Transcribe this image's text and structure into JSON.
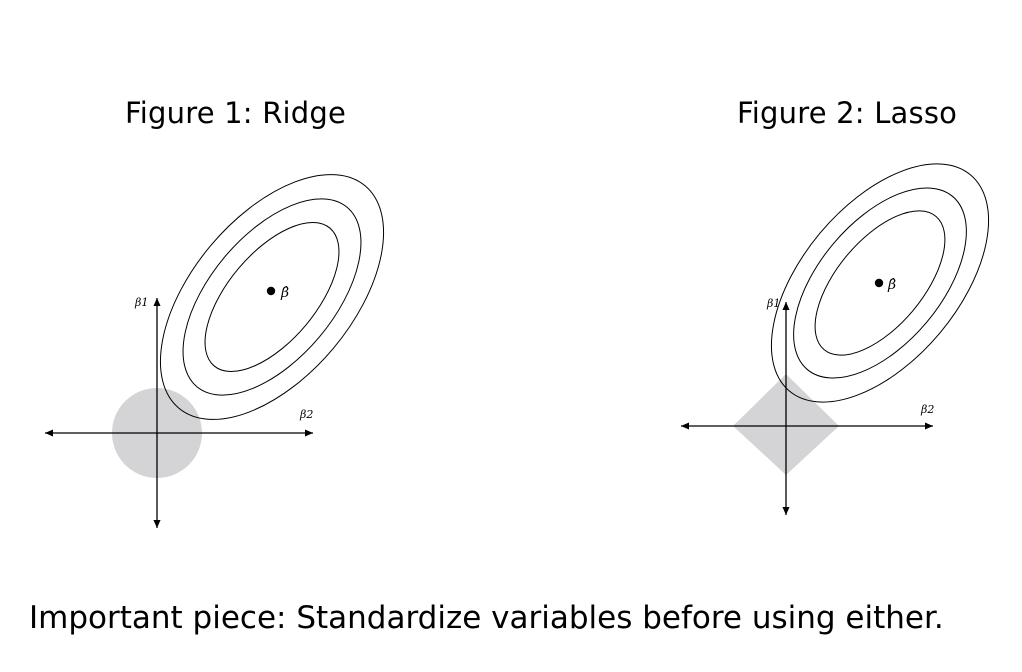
{
  "figures": [
    {
      "title": "Figure 1: Ridge",
      "constraint_shape": "circle",
      "axis_labels": {
        "vertical": "β1",
        "horizontal": "β2"
      },
      "estimate_label": "β̂",
      "constraint_fill": "#d4d3d5"
    },
    {
      "title": "Figure 2: Lasso",
      "constraint_shape": "diamond",
      "axis_labels": {
        "vertical": "β1",
        "horizontal": "β2"
      },
      "estimate_label": "β̂",
      "constraint_fill": "#d4d3d5"
    }
  ],
  "note": "Important piece: Standardize variables before using either."
}
